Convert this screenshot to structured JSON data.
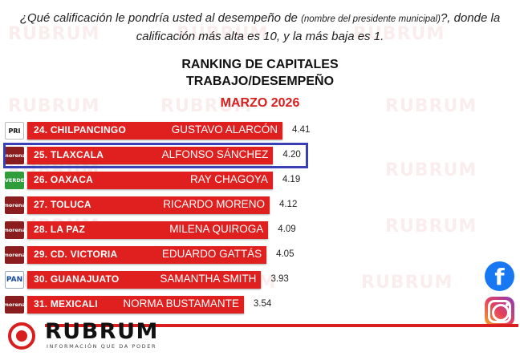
{
  "question": {
    "part1": "¿Qué calificación le pondría usted al desempeño de",
    "small": "(nombre del presidente municipal)",
    "part2": "?, donde la calificación más alta es 10, y la más baja es 1."
  },
  "watermark_text": "RUBRUM",
  "chart_data": {
    "type": "bar",
    "title": "RANKING DE CAPITALES",
    "subtitle": "TRABAJO/DESEMPEÑO",
    "period": "MARZO 2026",
    "categories": [
      "24. CHILPANCINGO",
      "25. TLAXCALA",
      "26. OAXACA",
      "27. TOLUCA",
      "28. LA PAZ",
      "29. CD. VICTORIA",
      "30. GUANAJUATO",
      "31. MEXICALI"
    ],
    "names": [
      "GUSTAVO ALARCÓN",
      "ALFONSO SÁNCHEZ",
      "RAY CHAGOYA",
      "RICARDO MORENO",
      "MILENA QUIROGA",
      "EDUARDO GATTÁS",
      "SAMANTHA SMITH",
      "NORMA BUSTAMANTE"
    ],
    "parties": [
      "pri",
      "morena",
      "verde",
      "morena",
      "morena",
      "morena",
      "pan",
      "morena"
    ],
    "party_labels": {
      "pri": "PRI",
      "morena": "morena",
      "verde": "VERDE",
      "pan": "PAN"
    },
    "values": [
      4.41,
      4.2,
      4.19,
      4.12,
      4.09,
      4.05,
      3.93,
      3.54
    ],
    "value_labels": [
      "4.41",
      "4.20",
      "4.19",
      "4.12",
      "4.09",
      "4.05",
      "3.93",
      "3.54"
    ],
    "highlighted_index": 1,
    "bar_color": "#e0201f"
  },
  "social": {
    "facebook_glyph": "f"
  },
  "brand": {
    "name": "RUBRUM",
    "tagline": "INFORMACIÓN QUE DA PODER",
    "color": "#d81e1e"
  }
}
